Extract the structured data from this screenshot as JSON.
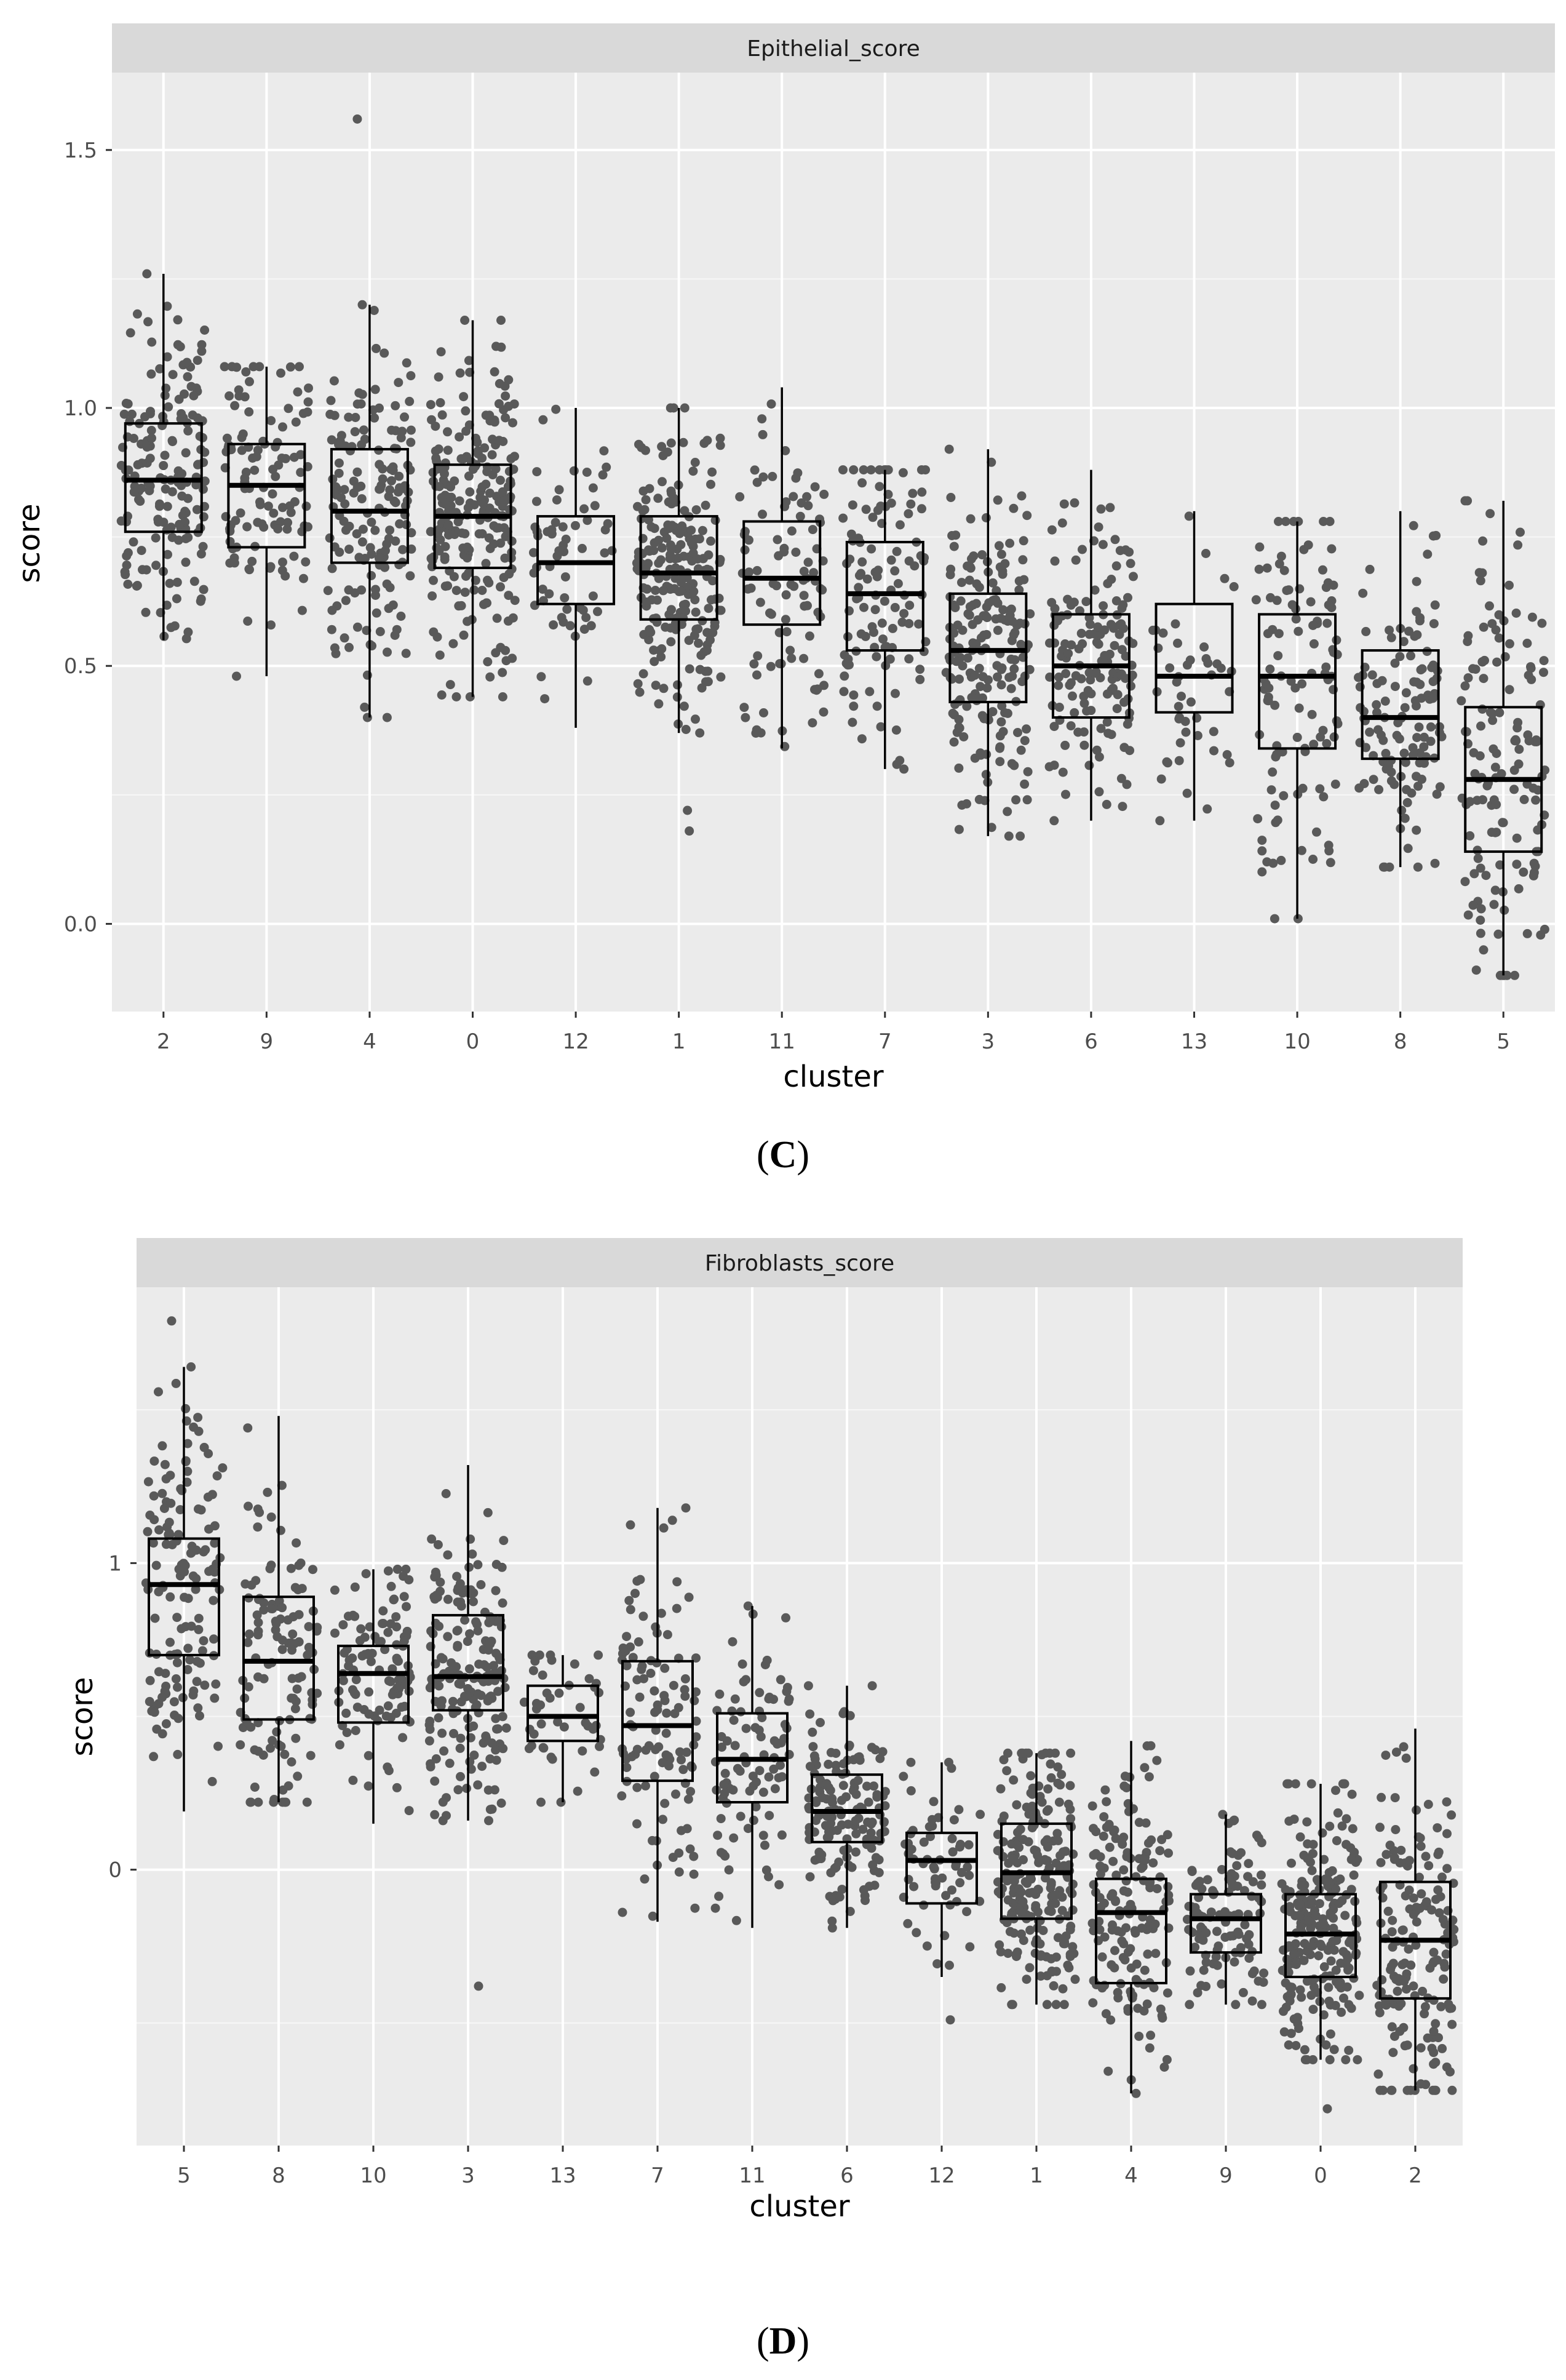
{
  "chart_data": [
    {
      "type": "boxplot",
      "panel_label": "C",
      "strip_title": "Epithelial_score",
      "xlabel": "cluster",
      "ylabel": "score",
      "ylim": [
        -0.17,
        1.65
      ],
      "y_ticks": [
        0.0,
        0.5,
        1.0,
        1.5
      ],
      "y_tick_labels": [
        "0.0",
        "0.5",
        "1.0",
        "1.5"
      ],
      "grid": true,
      "categories": [
        "2",
        "9",
        "4",
        "0",
        "12",
        "1",
        "11",
        "7",
        "3",
        "6",
        "13",
        "10",
        "8",
        "5"
      ],
      "boxes": [
        {
          "q1": 0.76,
          "median": 0.86,
          "q3": 0.97,
          "whisker_low": 0.55,
          "whisker_high": 1.26,
          "n": 170
        },
        {
          "q1": 0.73,
          "median": 0.85,
          "q3": 0.93,
          "whisker_low": 0.48,
          "whisker_high": 1.08,
          "n": 110
        },
        {
          "q1": 0.7,
          "median": 0.8,
          "q3": 0.92,
          "whisker_low": 0.4,
          "whisker_high": 1.2,
          "n": 160
        },
        {
          "q1": 0.69,
          "median": 0.79,
          "q3": 0.89,
          "whisker_low": 0.44,
          "whisker_high": 1.17,
          "n": 230
        },
        {
          "q1": 0.62,
          "median": 0.7,
          "q3": 0.79,
          "whisker_low": 0.38,
          "whisker_high": 1.0,
          "n": 60
        },
        {
          "q1": 0.59,
          "median": 0.68,
          "q3": 0.79,
          "whisker_low": 0.37,
          "whisker_high": 1.0,
          "n": 220
        },
        {
          "q1": 0.58,
          "median": 0.67,
          "q3": 0.78,
          "whisker_low": 0.34,
          "whisker_high": 1.04,
          "n": 90
        },
        {
          "q1": 0.53,
          "median": 0.64,
          "q3": 0.74,
          "whisker_low": 0.3,
          "whisker_high": 0.88,
          "n": 110
        },
        {
          "q1": 0.43,
          "median": 0.53,
          "q3": 0.64,
          "whisker_low": 0.17,
          "whisker_high": 0.92,
          "n": 190
        },
        {
          "q1": 0.4,
          "median": 0.5,
          "q3": 0.6,
          "whisker_low": 0.2,
          "whisker_high": 0.88,
          "n": 150
        },
        {
          "q1": 0.41,
          "median": 0.48,
          "q3": 0.62,
          "whisker_low": 0.2,
          "whisker_high": 0.8,
          "n": 45
        },
        {
          "q1": 0.34,
          "median": 0.48,
          "q3": 0.6,
          "whisker_low": 0.01,
          "whisker_high": 0.78,
          "n": 110
        },
        {
          "q1": 0.32,
          "median": 0.4,
          "q3": 0.53,
          "whisker_low": 0.11,
          "whisker_high": 0.8,
          "n": 120
        },
        {
          "q1": 0.14,
          "median": 0.28,
          "q3": 0.42,
          "whisker_low": -0.1,
          "whisker_high": 0.82,
          "n": 140
        }
      ],
      "outliers": [
        {
          "cluster": "4",
          "value": 1.56
        },
        {
          "cluster": "1",
          "value": 0.18
        },
        {
          "cluster": "1",
          "value": 0.22
        }
      ]
    },
    {
      "type": "boxplot",
      "panel_label": "D",
      "strip_title": "Fibroblasts_score",
      "xlabel": "cluster",
      "ylabel": "score",
      "ylim": [
        -0.9,
        1.9
      ],
      "y_ticks": [
        0,
        1
      ],
      "y_tick_labels": [
        "0",
        "1"
      ],
      "grid": true,
      "categories": [
        "5",
        "8",
        "10",
        "3",
        "13",
        "7",
        "11",
        "6",
        "12",
        "1",
        "4",
        "9",
        "0",
        "2"
      ],
      "boxes": [
        {
          "q1": 0.7,
          "median": 0.93,
          "q3": 1.08,
          "whisker_low": 0.19,
          "whisker_high": 1.64,
          "n": 140
        },
        {
          "q1": 0.49,
          "median": 0.68,
          "q3": 0.89,
          "whisker_low": 0.22,
          "whisker_high": 1.48,
          "n": 120
        },
        {
          "q1": 0.48,
          "median": 0.64,
          "q3": 0.73,
          "whisker_low": 0.15,
          "whisker_high": 0.98,
          "n": 110
        },
        {
          "q1": 0.52,
          "median": 0.63,
          "q3": 0.83,
          "whisker_low": 0.16,
          "whisker_high": 1.32,
          "n": 190
        },
        {
          "q1": 0.42,
          "median": 0.5,
          "q3": 0.6,
          "whisker_low": 0.22,
          "whisker_high": 0.7,
          "n": 45
        },
        {
          "q1": 0.29,
          "median": 0.47,
          "q3": 0.68,
          "whisker_low": -0.17,
          "whisker_high": 1.18,
          "n": 110
        },
        {
          "q1": 0.22,
          "median": 0.36,
          "q3": 0.51,
          "whisker_low": -0.19,
          "whisker_high": 0.86,
          "n": 90
        },
        {
          "q1": 0.09,
          "median": 0.19,
          "q3": 0.31,
          "whisker_low": -0.19,
          "whisker_high": 0.6,
          "n": 150
        },
        {
          "q1": -0.11,
          "median": 0.03,
          "q3": 0.12,
          "whisker_low": -0.35,
          "whisker_high": 0.35,
          "n": 60
        },
        {
          "q1": -0.16,
          "median": -0.01,
          "q3": 0.15,
          "whisker_low": -0.44,
          "whisker_high": 0.38,
          "n": 220
        },
        {
          "q1": -0.37,
          "median": -0.14,
          "q3": -0.03,
          "whisker_low": -0.73,
          "whisker_high": 0.42,
          "n": 160
        },
        {
          "q1": -0.27,
          "median": -0.16,
          "q3": -0.08,
          "whisker_low": -0.44,
          "whisker_high": 0.18,
          "n": 110
        },
        {
          "q1": -0.35,
          "median": -0.21,
          "q3": -0.08,
          "whisker_low": -0.62,
          "whisker_high": 0.28,
          "n": 230
        },
        {
          "q1": -0.42,
          "median": -0.23,
          "q3": -0.04,
          "whisker_low": -0.72,
          "whisker_high": 0.46,
          "n": 170
        }
      ],
      "outliers": [
        {
          "cluster": "5",
          "value": 1.79
        },
        {
          "cluster": "3",
          "value": -0.38
        },
        {
          "cluster": "12",
          "value": -0.49
        },
        {
          "cluster": "0",
          "value": -0.78
        },
        {
          "cluster": "4",
          "value": -0.73
        }
      ]
    }
  ]
}
